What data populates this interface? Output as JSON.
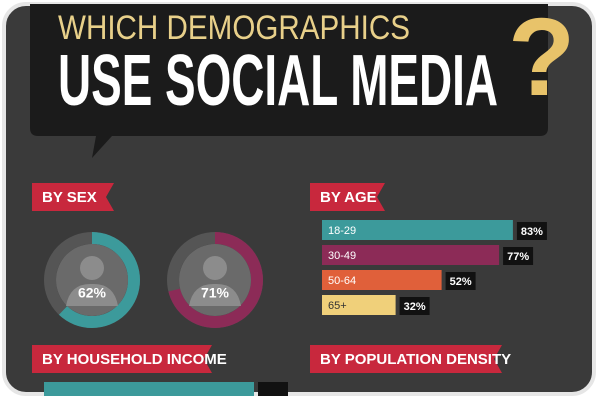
{
  "header": {
    "kicker": "WHICH DEMOGRAPHICS",
    "title": "USE SOCIAL MEDIA",
    "mark": "?"
  },
  "chart_data": [
    {
      "type": "donut",
      "title": "BY SEX",
      "values": [
        62,
        71
      ],
      "value_labels": [
        "62%",
        "71%"
      ],
      "colors": [
        "#3c9a9b",
        "#8c2b57"
      ]
    },
    {
      "type": "bar",
      "title": "BY AGE",
      "categories": [
        "18-29",
        "30-49",
        "50-64",
        "65+"
      ],
      "values": [
        83,
        77,
        52,
        32
      ],
      "value_labels": [
        "83%",
        "77%",
        "52%",
        "32%"
      ],
      "colors": [
        "#3c9a9b",
        "#8c2b57",
        "#e0603a",
        "#f0d07a"
      ]
    }
  ],
  "sections": [
    {
      "title": "BY HOUSEHOLD INCOME"
    },
    {
      "title": "BY POPULATION DENSITY"
    }
  ]
}
